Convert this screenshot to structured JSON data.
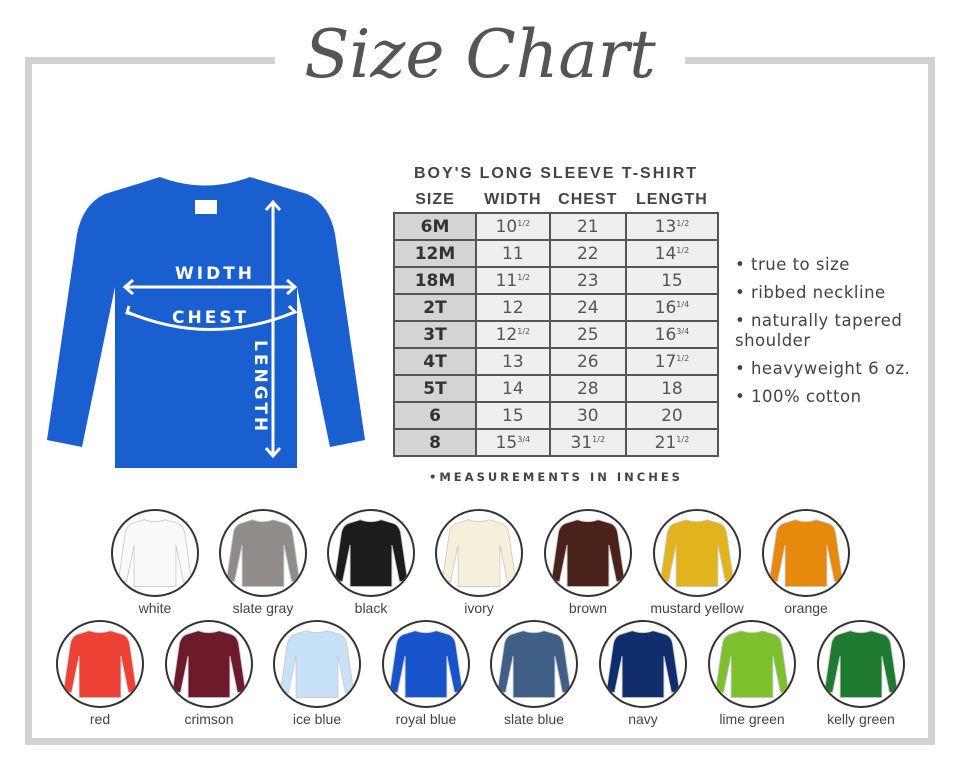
{
  "title": "Size Chart",
  "shirt_labels": {
    "width": "WIDTH",
    "chest": "CHEST",
    "length": "LENGTH",
    "color": "#1a5fd0"
  },
  "table": {
    "title": "BOY'S LONG SLEEVE T-SHIRT",
    "headers": [
      "SIZE",
      "WIDTH",
      "CHEST",
      "LENGTH"
    ],
    "rows": [
      [
        {
          "w": "6M"
        },
        {
          "w": "10",
          "f": "1/2"
        },
        {
          "w": "21"
        },
        {
          "w": "13",
          "f": "1/2"
        }
      ],
      [
        {
          "w": "12M"
        },
        {
          "w": "11"
        },
        {
          "w": "22"
        },
        {
          "w": "14",
          "f": "1/2"
        }
      ],
      [
        {
          "w": "18M"
        },
        {
          "w": "11",
          "f": "1/2"
        },
        {
          "w": "23"
        },
        {
          "w": "15"
        }
      ],
      [
        {
          "w": "2T"
        },
        {
          "w": "12"
        },
        {
          "w": "24"
        },
        {
          "w": "16",
          "f": "1/4"
        }
      ],
      [
        {
          "w": "3T"
        },
        {
          "w": "12",
          "f": "1/2"
        },
        {
          "w": "25"
        },
        {
          "w": "16",
          "f": "3/4"
        }
      ],
      [
        {
          "w": "4T"
        },
        {
          "w": "13"
        },
        {
          "w": "26"
        },
        {
          "w": "17",
          "f": "1/2"
        }
      ],
      [
        {
          "w": "5T"
        },
        {
          "w": "14"
        },
        {
          "w": "28"
        },
        {
          "w": "18"
        }
      ],
      [
        {
          "w": "6"
        },
        {
          "w": "15"
        },
        {
          "w": "30"
        },
        {
          "w": "20"
        }
      ],
      [
        {
          "w": "8"
        },
        {
          "w": "15",
          "f": "3/4"
        },
        {
          "w": "31",
          "f": "1/2"
        },
        {
          "w": "21",
          "f": "1/2"
        }
      ]
    ],
    "note": "•MEASUREMENTS IN INCHES"
  },
  "features": [
    "• true to size",
    "• ribbed neckline",
    "• naturally tapered shoulder",
    "• heavyweight 6 oz.",
    "• 100% cotton"
  ],
  "colors": [
    {
      "name": "white",
      "hex": "#fafafa"
    },
    {
      "name": "slate gray",
      "hex": "#8f8c8a"
    },
    {
      "name": "black",
      "hex": "#1c1c1c"
    },
    {
      "name": "ivory",
      "hex": "#f6f0da"
    },
    {
      "name": "brown",
      "hex": "#4a2219"
    },
    {
      "name": "mustard yellow",
      "hex": "#e1b31c"
    },
    {
      "name": "orange",
      "hex": "#e6890c"
    },
    {
      "name": "red",
      "hex": "#ee4136"
    },
    {
      "name": "crimson",
      "hex": "#6d1b2a"
    },
    {
      "name": "ice blue",
      "hex": "#c7e2f6"
    },
    {
      "name": "royal blue",
      "hex": "#1854c9"
    },
    {
      "name": "slate blue",
      "hex": "#3f5f86"
    },
    {
      "name": "navy",
      "hex": "#0f2e6b"
    },
    {
      "name": "lime green",
      "hex": "#7dc02e"
    },
    {
      "name": "kelly green",
      "hex": "#1e7a2f"
    }
  ]
}
